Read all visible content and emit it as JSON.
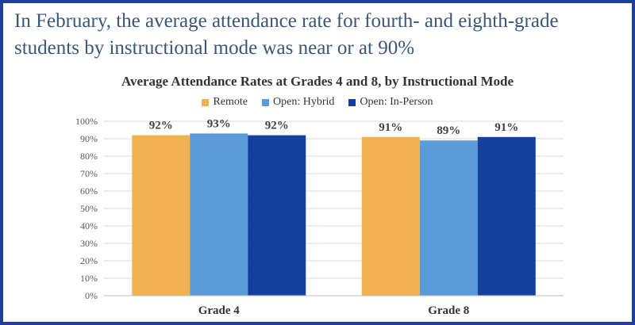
{
  "headline": "In February, the average attendance rate for fourth- and eighth-grade students by instructional mode was near or at 90%",
  "chart_data": {
    "type": "bar",
    "title": "Average Attendance Rates at Grades 4 and 8, by Instructional Mode",
    "categories": [
      "Grade 4",
      "Grade 8"
    ],
    "series": [
      {
        "name": "Remote",
        "values": [
          92,
          91
        ],
        "color": "#f2b251"
      },
      {
        "name": "Open: Hybrid",
        "values": [
          93,
          89
        ],
        "color": "#5b9bd9"
      },
      {
        "name": "Open: In-Person",
        "values": [
          92,
          91
        ],
        "color": "#13409e"
      }
    ],
    "data_labels": [
      [
        "92%",
        "91%"
      ],
      [
        "93%",
        "89%"
      ],
      [
        "92%",
        "91%"
      ]
    ],
    "y_ticks": [
      "0%",
      "10%",
      "20%",
      "30%",
      "40%",
      "50%",
      "60%",
      "70%",
      "80%",
      "90%",
      "100%"
    ],
    "ylim": [
      0,
      100
    ],
    "grid": true,
    "legend_position": "top-center",
    "xlabel": "",
    "ylabel": ""
  },
  "colors": {
    "border": "#1f3f99",
    "headline_text": "#3a5678",
    "gridline": "#d9d9d9"
  }
}
